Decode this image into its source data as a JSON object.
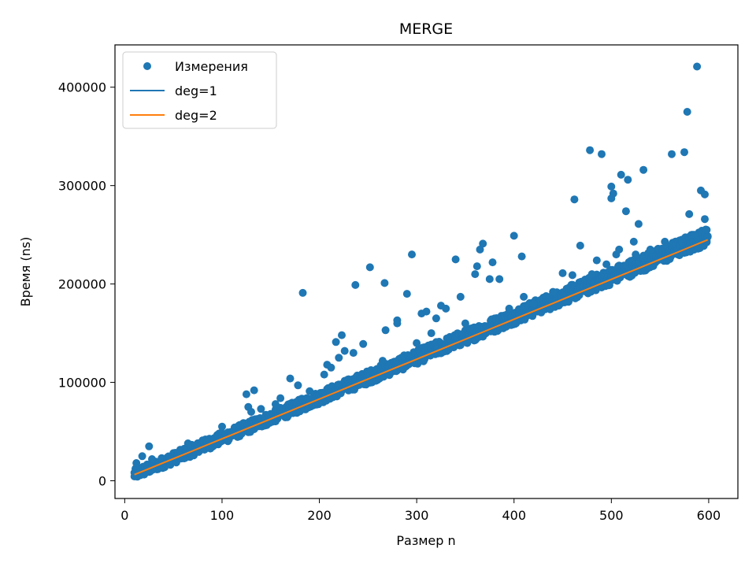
{
  "chart_data": {
    "type": "scatter",
    "title": "MERGE",
    "xlabel": "Размер n",
    "ylabel": "Время (ns)",
    "xlim": [
      -10,
      630
    ],
    "ylim": [
      -18000,
      443000
    ],
    "xticks": [
      0,
      100,
      200,
      300,
      400,
      500,
      600
    ],
    "yticks": [
      0,
      100000,
      200000,
      300000,
      400000
    ],
    "grid": false,
    "legend_position": "top-left",
    "colors": {
      "scatter": "#1f77b4",
      "deg1": "#1f77b4",
      "deg2": "#ff7f0e"
    },
    "measurements": {
      "name": "Измерения",
      "n_range": [
        10,
        599
      ],
      "trend_slope": 405,
      "trend_intercept": 2000,
      "band": [
        -5000,
        13000
      ],
      "outliers": [
        [
          12,
          18000
        ],
        [
          18,
          25000
        ],
        [
          25,
          35000
        ],
        [
          28,
          22000
        ],
        [
          55,
          28000
        ],
        [
          65,
          38000
        ],
        [
          80,
          41000
        ],
        [
          85,
          40000
        ],
        [
          100,
          55000
        ],
        [
          110,
          48000
        ],
        [
          125,
          88000
        ],
        [
          127,
          75000
        ],
        [
          130,
          70000
        ],
        [
          133,
          92000
        ],
        [
          140,
          73000
        ],
        [
          155,
          78000
        ],
        [
          160,
          84000
        ],
        [
          170,
          104000
        ],
        [
          178,
          97000
        ],
        [
          183,
          191000
        ],
        [
          190,
          91000
        ],
        [
          205,
          108000
        ],
        [
          208,
          118000
        ],
        [
          212,
          115000
        ],
        [
          217,
          141000
        ],
        [
          220,
          125000
        ],
        [
          223,
          148000
        ],
        [
          226,
          132000
        ],
        [
          235,
          130000
        ],
        [
          237,
          199000
        ],
        [
          245,
          139000
        ],
        [
          252,
          217000
        ],
        [
          265,
          122000
        ],
        [
          267,
          201000
        ],
        [
          268,
          153000
        ],
        [
          280,
          163000
        ],
        [
          280,
          160000
        ],
        [
          290,
          190000
        ],
        [
          295,
          230000
        ],
        [
          300,
          140000
        ],
        [
          305,
          170000
        ],
        [
          310,
          172000
        ],
        [
          315,
          150000
        ],
        [
          320,
          165000
        ],
        [
          325,
          178000
        ],
        [
          330,
          175000
        ],
        [
          340,
          225000
        ],
        [
          345,
          187000
        ],
        [
          350,
          160000
        ],
        [
          360,
          210000
        ],
        [
          362,
          218000
        ],
        [
          365,
          235000
        ],
        [
          368,
          241000
        ],
        [
          375,
          205000
        ],
        [
          378,
          222000
        ],
        [
          385,
          205000
        ],
        [
          395,
          175000
        ],
        [
          400,
          249000
        ],
        [
          408,
          228000
        ],
        [
          410,
          187000
        ],
        [
          420,
          180000
        ],
        [
          440,
          192000
        ],
        [
          450,
          211000
        ],
        [
          460,
          209000
        ],
        [
          462,
          286000
        ],
        [
          468,
          239000
        ],
        [
          478,
          336000
        ],
        [
          480,
          210000
        ],
        [
          485,
          224000
        ],
        [
          490,
          332000
        ],
        [
          495,
          220000
        ],
        [
          500,
          299000
        ],
        [
          500,
          287000
        ],
        [
          502,
          292000
        ],
        [
          505,
          230000
        ],
        [
          508,
          235000
        ],
        [
          510,
          311000
        ],
        [
          515,
          274000
        ],
        [
          517,
          306000
        ],
        [
          523,
          243000
        ],
        [
          525,
          230000
        ],
        [
          528,
          261000
        ],
        [
          533,
          316000
        ],
        [
          540,
          235000
        ],
        [
          555,
          243000
        ],
        [
          562,
          332000
        ],
        [
          575,
          334000
        ],
        [
          578,
          375000
        ],
        [
          580,
          271000
        ],
        [
          585,
          250000
        ],
        [
          588,
          421000
        ],
        [
          592,
          295000
        ],
        [
          596,
          291000
        ],
        [
          596,
          266000
        ],
        [
          598,
          255000
        ]
      ]
    },
    "series": [
      {
        "name": "deg=1",
        "type": "line",
        "coef": [
          405,
          2000
        ],
        "x_range": [
          10,
          599
        ]
      },
      {
        "name": "deg=2",
        "type": "line",
        "coef": [
          0.002,
          404,
          2200
        ],
        "x_range": [
          10,
          599
        ]
      }
    ]
  }
}
